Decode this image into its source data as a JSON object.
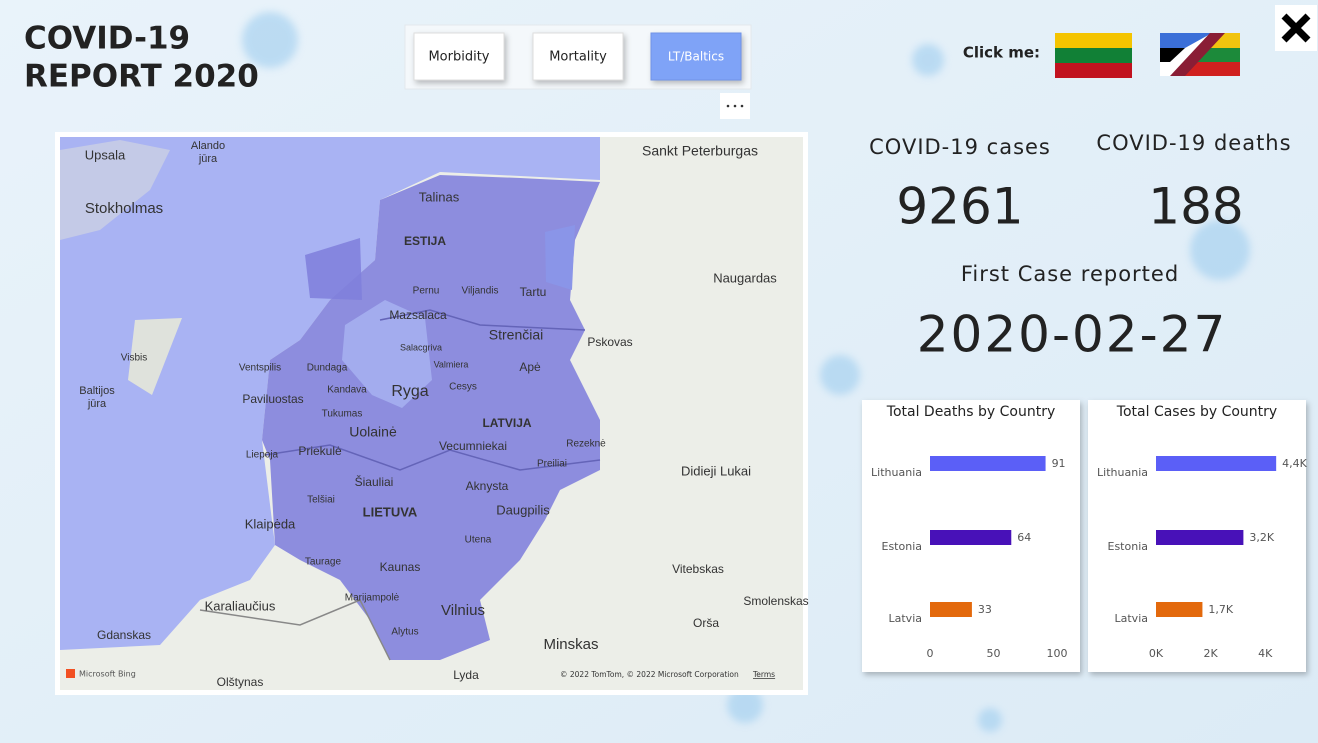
{
  "header": {
    "title_lines": [
      "COVID-19",
      "REPORT 2020"
    ]
  },
  "buttons": [
    "Morbidity",
    "Mortality",
    "LT/Baltics"
  ],
  "click_label": "Click me:",
  "kpis": {
    "cases": {
      "label": "COVID-19 cases",
      "value": 9261
    },
    "deaths": {
      "label": "COVID-19 deaths",
      "value": 188
    },
    "first_case": {
      "label": "First Case reported",
      "value": "2020-02-27"
    }
  },
  "map": {
    "labels": [
      "Upsala",
      "Alando",
      "jūra",
      "Sankt Peterburgas",
      "Stokholmas",
      "Talinas",
      "ESTIJA",
      "Naugardas",
      "Pernu",
      "Viljandis",
      "Tartu",
      "Mazsalaca",
      "Strenčiai",
      "Pskovas",
      "Visbis",
      "Salacgriva",
      "Valmiera",
      "Apė",
      "Ventspilis",
      "Dundaga",
      "Kandava",
      "Cesys",
      "Baltijos",
      "jūra",
      "Ryga",
      "Paviluostas",
      "Tukumas",
      "LATVIJA",
      "Uolainė",
      "Vecumniekai",
      "Rezeknė",
      "Didieji Lukai",
      "Liepoja",
      "Priekulė",
      "Preiliai",
      "Šiauliai",
      "Aknysta",
      "Telšiai",
      "LIETUVA",
      "Daugpilis",
      "Klaipėda",
      "Utena",
      "Vitebskas",
      "Taurage",
      "Kaunas",
      "Marijampolė",
      "Karaliaučius",
      "Vilnius",
      "Smolenskas",
      "Gdanskas",
      "Orša",
      "Alytus",
      "Minskas",
      "Olštynas",
      "Lyda"
    ],
    "logo": "Microsoft Bing",
    "attribution": "© 2022 TomTom, © 2022 Microsoft Corporation",
    "terms": "Terms"
  },
  "chart_data": [
    {
      "type": "hbar",
      "title": "Total Deaths by Country",
      "categories": [
        "Lithuania",
        "Estonia",
        "Latvia"
      ],
      "values": [
        91,
        64,
        33
      ],
      "colors": [
        "#5b5ff7",
        "#4811b8",
        "#e3690c"
      ],
      "xlim": [
        0,
        100
      ],
      "xticks": [
        0,
        50,
        100
      ]
    },
    {
      "type": "hbar",
      "title": "Total Cases by Country",
      "categories": [
        "Lithuania",
        "Estonia",
        "Latvia"
      ],
      "values": [
        4400,
        3200,
        1700
      ],
      "value_labels": [
        "4,4K",
        "3,2K",
        "1,7K"
      ],
      "colors": [
        "#5b5ff7",
        "#4811b8",
        "#e3690c"
      ],
      "xlim": [
        0,
        4650
      ],
      "xticks": [
        {
          "value": 0,
          "label": "0K"
        },
        {
          "value": 2000,
          "label": "2K"
        },
        {
          "value": 4000,
          "label": "4K"
        }
      ]
    }
  ]
}
